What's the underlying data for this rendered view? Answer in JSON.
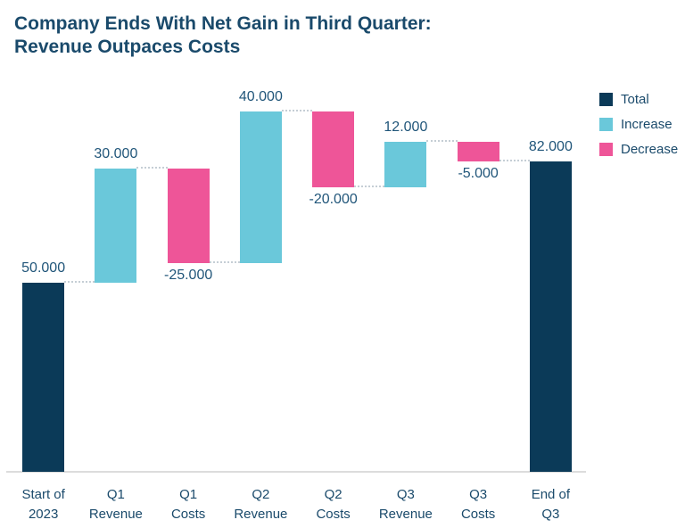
{
  "title": {
    "line1": "Company Ends With Net Gain in Third Quarter:",
    "line2": "Revenue Outpaces Costs"
  },
  "chart_data": {
    "type": "bar",
    "subtype": "waterfall",
    "title": "Company Ends With Net Gain in Third Quarter: Revenue Outpaces Costs",
    "categories": [
      "Start of 2023",
      "Q1 Revenue",
      "Q1 Costs",
      "Q2 Revenue",
      "Q2 Costs",
      "Q3 Revenue",
      "Q3 Costs",
      "End of Q3"
    ],
    "category_label_lines": [
      [
        "Start of",
        "2023"
      ],
      [
        "Q1",
        "Revenue"
      ],
      [
        "Q1",
        "Costs"
      ],
      [
        "Q2",
        "Revenue"
      ],
      [
        "Q2",
        "Costs"
      ],
      [
        "Q3",
        "Revenue"
      ],
      [
        "Q3",
        "Costs"
      ],
      [
        "End of",
        "Q3"
      ]
    ],
    "steps": [
      {
        "category": "Start of 2023",
        "kind": "total",
        "value": 50,
        "data_label": "50.000",
        "label_position": "above"
      },
      {
        "category": "Q1 Revenue",
        "kind": "increase",
        "value": 30,
        "data_label": "30.000",
        "label_position": "above"
      },
      {
        "category": "Q1 Costs",
        "kind": "decrease",
        "value": -25,
        "data_label": "-25.000",
        "label_position": "below"
      },
      {
        "category": "Q2 Revenue",
        "kind": "increase",
        "value": 40,
        "data_label": "40.000",
        "label_position": "above"
      },
      {
        "category": "Q2 Costs",
        "kind": "decrease",
        "value": -20,
        "data_label": "-20.000",
        "label_position": "below"
      },
      {
        "category": "Q3 Revenue",
        "kind": "increase",
        "value": 12,
        "data_label": "12.000",
        "label_position": "above"
      },
      {
        "category": "Q3 Costs",
        "kind": "decrease",
        "value": -5,
        "data_label": "-5.000",
        "label_position": "below"
      },
      {
        "category": "End of Q3",
        "kind": "total",
        "value": 82,
        "data_label": "82.000",
        "label_position": "above"
      }
    ],
    "running_totals": [
      50,
      80,
      55,
      95,
      75,
      87,
      82,
      82
    ],
    "ylim": [
      0,
      95
    ],
    "grid": false,
    "connector_style": "dotted",
    "legend_position": "right",
    "legend": [
      {
        "label": "Total",
        "kind": "total",
        "color": "#0B3A58"
      },
      {
        "label": "Increase",
        "kind": "increase",
        "color": "#6AC8DA"
      },
      {
        "label": "Decrease",
        "kind": "decrease",
        "color": "#EE5598"
      }
    ],
    "colors": {
      "title_text": "#1A4A6B",
      "data_label_text": "#21567A",
      "axis_label_text": "#1A4A6B",
      "axis_line": "#DCDCDC",
      "connector": "#C5CED5",
      "background": "#FFFFFF"
    }
  }
}
